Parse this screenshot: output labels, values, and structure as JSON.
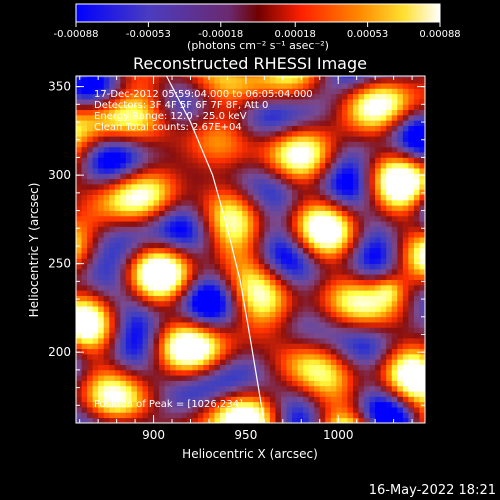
{
  "chart_data": {
    "type": "heatmap",
    "title": "Reconstructed RHESSI Image",
    "xlabel": "Heliocentric X (arcsec)",
    "ylabel": "Heliocentric Y (arcsec)",
    "xlim": [
      858,
      1047
    ],
    "ylim": [
      160,
      356
    ],
    "x_ticks": [
      900,
      950,
      1000
    ],
    "y_ticks": [
      200,
      250,
      300,
      350
    ],
    "colorbar": {
      "label": "(photons cm⁻² s⁻¹ asec⁻²)",
      "range": [
        -0.00088,
        0.00088
      ],
      "ticks": [
        -0.00088,
        -0.00053,
        -0.00018,
        0.00018,
        0.00053,
        0.00088
      ],
      "tick_labels": [
        "-0.00088",
        "-0.00053",
        "-0.00018",
        "0.00018",
        "0.00053",
        "0.00088"
      ],
      "colormap": [
        "#0000ff",
        "#4040c0",
        "#7a4a90",
        "#8a1010",
        "#ff3000",
        "#ff9000",
        "#ffff40",
        "#ffffff"
      ]
    },
    "annotations": [
      "17-Dec-2012 05:59:04.000 to 06:05:04.000",
      "Detectors: 3F 4F 5F 6F 7F 8F, Att 0",
      "Energy Range: 12.0 - 25.0 keV",
      "Clean     Total counts: 2.67E+04"
    ],
    "peak_label": "Position of Peak = [1026,234]",
    "peak": [
      1026,
      234
    ],
    "limb_curve": [
      [
        907,
        356
      ],
      [
        920,
        330
      ],
      [
        932,
        300
      ],
      [
        940,
        270
      ],
      [
        947,
        240
      ],
      [
        952,
        210
      ],
      [
        956,
        185
      ],
      [
        960,
        160
      ]
    ]
  },
  "footer": {
    "timestamp": "16-May-2022 18:21"
  }
}
